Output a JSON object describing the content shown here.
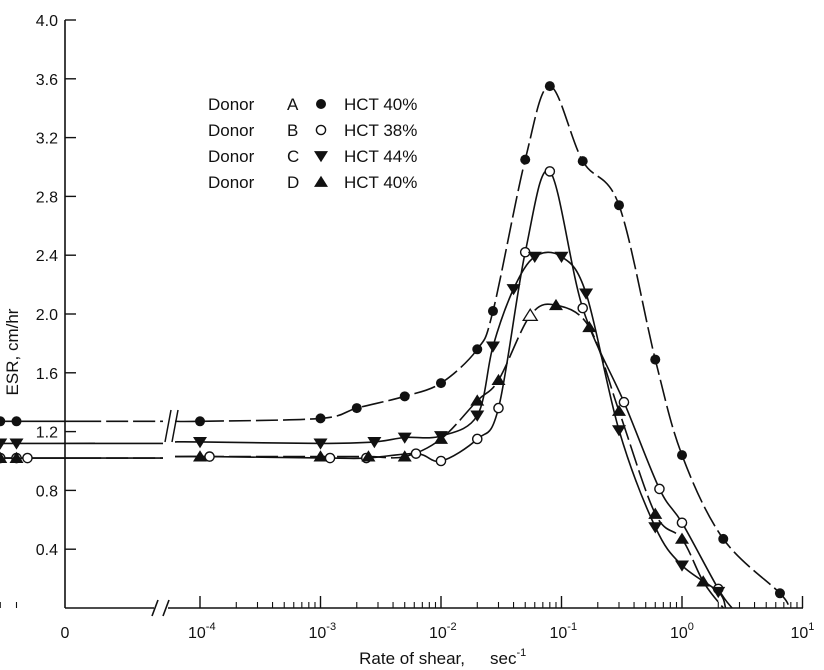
{
  "chart_data": {
    "type": "scatter",
    "xscale": "log",
    "xlabel": "Rate of shear,",
    "xunit": "sec",
    "xunit_exp": "-1",
    "ylabel": "ESR,  cm/hr",
    "ylim": [
      0,
      4.0
    ],
    "yticks": [
      "4.0",
      "3.6",
      "3.2",
      "2.8",
      "2.4",
      "2.0",
      "1.6",
      "1.2",
      "0.8",
      "0.4"
    ],
    "xtick_zero": "0",
    "xticks": [
      {
        "value": 0.0001,
        "base": "10",
        "exp": "-4"
      },
      {
        "value": 0.001,
        "base": "10",
        "exp": "-3"
      },
      {
        "value": 0.01,
        "base": "10",
        "exp": "-2"
      },
      {
        "value": 0.1,
        "base": "10",
        "exp": "-1"
      },
      {
        "value": 1,
        "base": "10",
        "exp": "0"
      },
      {
        "value": 10,
        "base": "10",
        "exp": "1"
      }
    ],
    "axis_break": true,
    "grid": false,
    "legend_position": "upper-left",
    "series": [
      {
        "name": "Donor  A  HCT 40%",
        "donor": "Donor",
        "letter": "A",
        "hct": "HCT 40%",
        "marker": "filled-circle",
        "line": "long-dash",
        "x": [
          2.2e-06,
          3e-06,
          0.0001,
          0.001,
          0.002,
          0.005,
          0.01,
          0.02,
          0.027,
          0.05,
          0.08,
          0.15,
          0.3,
          0.6,
          1.0,
          2.2,
          6.5,
          7.7
        ],
        "y": [
          1.27,
          1.27,
          1.27,
          1.29,
          1.36,
          1.44,
          1.53,
          1.76,
          2.02,
          3.05,
          3.55,
          3.04,
          2.74,
          1.69,
          1.04,
          0.47,
          0.1,
          0.0
        ]
      },
      {
        "name": "Donor  B  HCT 38%",
        "donor": "Donor",
        "letter": "B",
        "hct": "HCT 38%",
        "marker": "open-circle",
        "line": "solid",
        "x": [
          2.2e-06,
          3e-06,
          3.7e-06,
          0.00012,
          0.0012,
          0.0024,
          0.0062,
          0.01,
          0.02,
          0.03,
          0.05,
          0.08,
          0.15,
          0.33,
          0.65,
          1.0,
          2.0,
          2.6
        ],
        "y": [
          1.02,
          1.02,
          1.02,
          1.03,
          1.02,
          1.02,
          1.05,
          1.0,
          1.15,
          1.36,
          2.42,
          2.97,
          2.04,
          1.4,
          0.81,
          0.58,
          0.13,
          0.0
        ]
      },
      {
        "name": "Donor  C  HCT 44%",
        "donor": "Donor",
        "letter": "C",
        "hct": "HCT 44%",
        "marker": "filled-triangle-down",
        "line": "solid",
        "x": [
          2.2e-06,
          3e-06,
          0.0001,
          0.001,
          0.0028,
          0.005,
          0.01,
          0.02,
          0.027,
          0.04,
          0.06,
          0.1,
          0.16,
          0.3,
          0.6,
          1.0,
          2.0,
          2.3
        ],
        "y": [
          1.12,
          1.12,
          1.13,
          1.12,
          1.13,
          1.16,
          1.17,
          1.31,
          1.78,
          2.17,
          2.39,
          2.39,
          2.14,
          1.21,
          0.55,
          0.29,
          0.11,
          0.0
        ]
      },
      {
        "name": "Donor  D  HCT 40%",
        "donor": "Donor",
        "letter": "D",
        "hct": "HCT 40%",
        "marker": "filled-triangle-up",
        "line": "long-dash",
        "x": [
          2.2e-06,
          3e-06,
          0.0001,
          0.001,
          0.0025,
          0.005,
          0.01,
          0.02,
          0.03,
          0.055,
          0.09,
          0.17,
          0.3,
          0.6,
          1.0,
          1.5,
          2.2
        ],
        "y": [
          1.02,
          1.02,
          1.03,
          1.03,
          1.03,
          1.03,
          1.15,
          1.41,
          1.55,
          1.99,
          2.06,
          1.91,
          1.34,
          0.64,
          0.47,
          0.18,
          0.0
        ]
      }
    ]
  }
}
